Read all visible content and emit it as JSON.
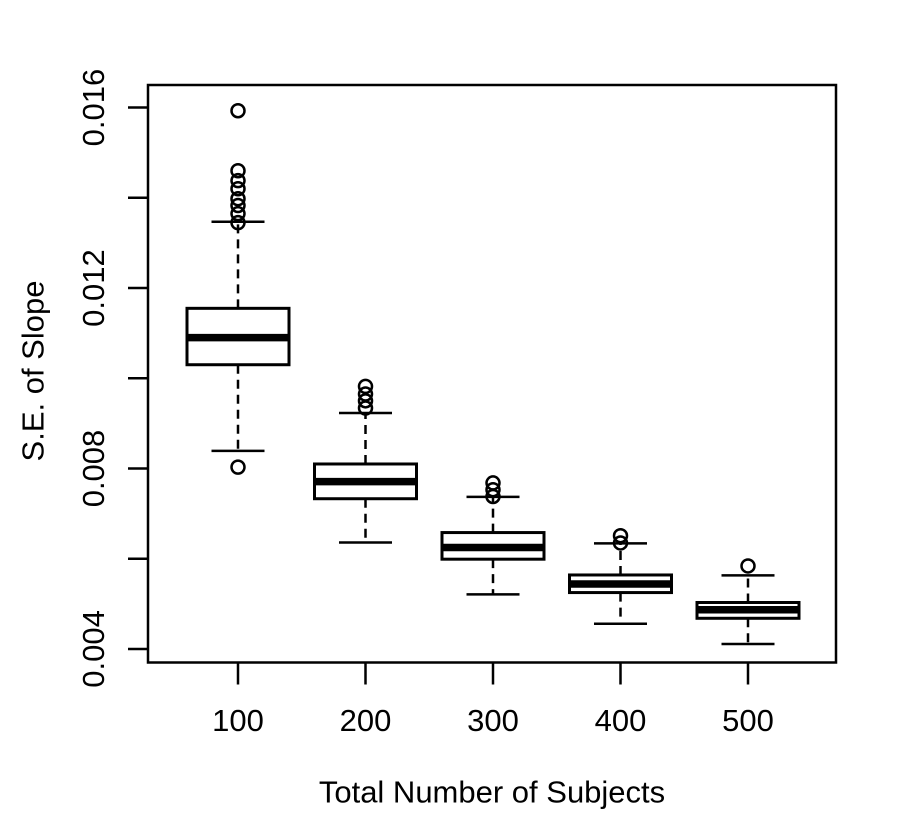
{
  "figure": {
    "background_color": "#ffffff",
    "line_color": "#000000"
  },
  "chart_data": {
    "type": "boxplot",
    "title": "",
    "xlabel": "Total Number of Subjects",
    "ylabel": "S.E. of Slope",
    "categories": [
      "100",
      "200",
      "300",
      "400",
      "500"
    ],
    "ylim": [
      0.0037,
      0.0165
    ],
    "grid": false,
    "legend": "none",
    "yticks": [
      {
        "value": 0.004,
        "label": "0.004"
      },
      {
        "value": 0.006,
        "label": ""
      },
      {
        "value": 0.008,
        "label": "0.008"
      },
      {
        "value": 0.01,
        "label": ""
      },
      {
        "value": 0.012,
        "label": "0.012"
      },
      {
        "value": 0.014,
        "label": ""
      },
      {
        "value": 0.016,
        "label": "0.016"
      }
    ],
    "boxes": [
      {
        "category": "100",
        "whisker_low": 0.00839,
        "q1": 0.0103,
        "median": 0.0109,
        "q3": 0.01155,
        "whisker_high": 0.01347,
        "outliers": [
          0.00803,
          0.01345,
          0.01365,
          0.01383,
          0.01398,
          0.0142,
          0.01438,
          0.0146,
          0.01593
        ]
      },
      {
        "category": "200",
        "whisker_low": 0.00636,
        "q1": 0.00733,
        "median": 0.00771,
        "q3": 0.0081,
        "whisker_high": 0.00923,
        "outliers": [
          0.00934,
          0.0095,
          0.00965,
          0.00982
        ]
      },
      {
        "category": "300",
        "whisker_low": 0.00521,
        "q1": 0.00599,
        "median": 0.00625,
        "q3": 0.00658,
        "whisker_high": 0.00737,
        "outliers": [
          0.00738,
          0.00753,
          0.00768
        ]
      },
      {
        "category": "400",
        "whisker_low": 0.00456,
        "q1": 0.00525,
        "median": 0.00544,
        "q3": 0.00564,
        "whisker_high": 0.00634,
        "outliers": [
          0.00635,
          0.00651
        ]
      },
      {
        "category": "500",
        "whisker_low": 0.00411,
        "q1": 0.00468,
        "median": 0.00487,
        "q3": 0.00503,
        "whisker_high": 0.00563,
        "outliers": [
          0.00584
        ]
      }
    ]
  }
}
